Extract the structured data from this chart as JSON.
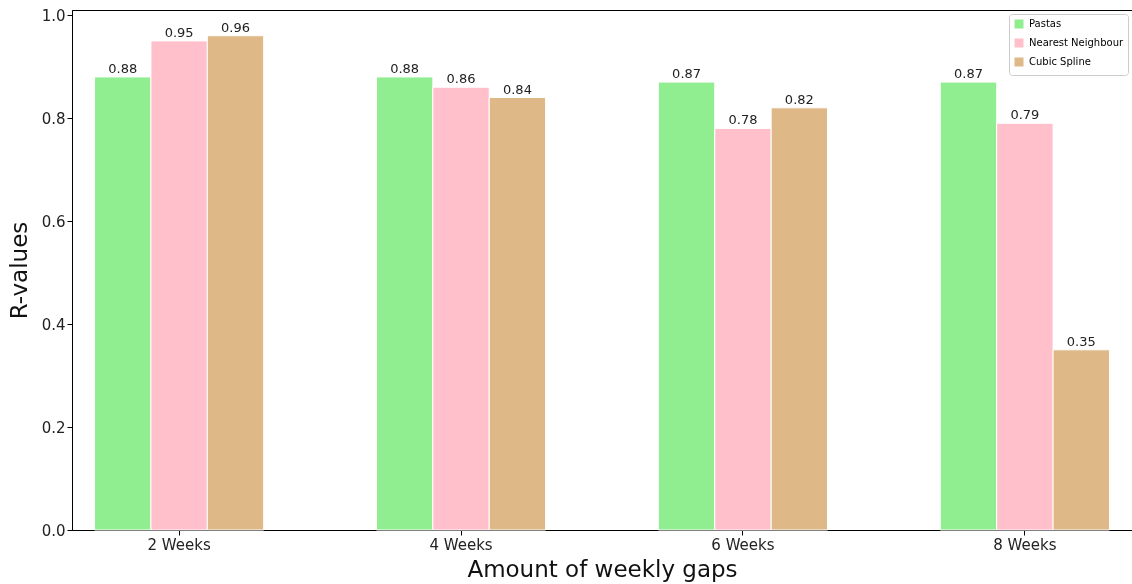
{
  "chart_data": {
    "type": "bar",
    "xlabel": "Amount of weekly gaps",
    "ylabel": "R-values",
    "categories": [
      "2 Weeks",
      "4 Weeks",
      "6 Weeks",
      "8 Weeks"
    ],
    "series": [
      {
        "name": "Pastas",
        "color": "#90ee90",
        "values": [
          0.88,
          0.88,
          0.87,
          0.87
        ]
      },
      {
        "name": "Nearest Neighbour",
        "color": "#ffc0cb",
        "values": [
          0.95,
          0.86,
          0.78,
          0.79
        ]
      },
      {
        "name": "Cubic Spline",
        "color": "#deb887",
        "values": [
          0.96,
          0.84,
          0.82,
          0.35
        ]
      }
    ],
    "ylim": [
      0,
      1.01
    ],
    "yticks": [
      {
        "value": 0,
        "label": "0.0"
      },
      0.2,
      0.4,
      0.6,
      0.8,
      {
        "value": 1,
        "label": "1.0"
      }
    ],
    "data_labels": true,
    "legend": "top right",
    "grid": false
  }
}
